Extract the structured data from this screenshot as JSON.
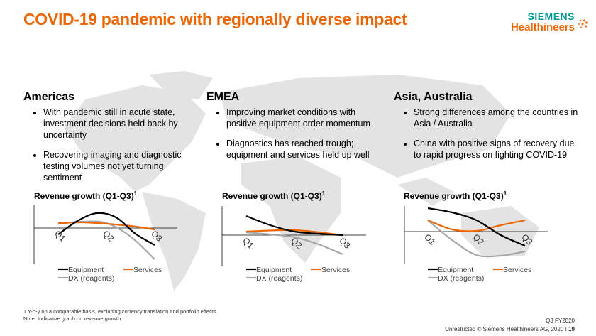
{
  "header": {
    "title": "COVID-19 pandemic with regionally diverse impact",
    "logo_line1": "SIEMENS",
    "logo_line2": "Healthineers"
  },
  "regions": [
    {
      "name": "Americas",
      "bullets": [
        "With pandemic still in acute state, investment decisions held back by uncertainty",
        "Recovering imaging and diagnostic testing volumes not yet turning sentiment"
      ]
    },
    {
      "name": "EMEA",
      "bullets": [
        "Improving market conditions with positive equipment order momentum",
        "Diagnostics has reached trough; equipment and services held up well"
      ]
    },
    {
      "name": "Asia, Australia",
      "bullets": [
        "Strong differences among the countries in Asia / Australia",
        "China with positive signs of recovery due to rapid progress on fighting COVID-19"
      ]
    }
  ],
  "chart_data": [
    {
      "type": "line",
      "title": "Revenue growth (Q1-Q3)",
      "title_sup": "1",
      "categories": [
        "Q1",
        "Q2",
        "Q3"
      ],
      "note": "indicative",
      "series": [
        {
          "name": "Equipment",
          "color": "#000000",
          "x": [
            1,
            1.4,
            1.8,
            2.2,
            2.6,
            3
          ],
          "y": [
            -0.9,
            1.0,
            2.1,
            1.5,
            -0.8,
            -2.4
          ]
        },
        {
          "name": "Services",
          "color": "#ec6602",
          "x": [
            1,
            1.5,
            2,
            2.5,
            3
          ],
          "y": [
            0.7,
            0.8,
            0.6,
            0.3,
            -0.2
          ]
        },
        {
          "name": "DX (reagents)",
          "color": "#a6a6a6",
          "x": [
            1,
            1.5,
            2,
            2.5,
            3
          ],
          "y": [
            0.6,
            0.9,
            0.7,
            -1.2,
            -4.4
          ]
        }
      ]
    },
    {
      "type": "line",
      "title": "Revenue growth (Q1-Q3)",
      "title_sup": "1",
      "categories": [
        "Q1",
        "Q2",
        "Q3"
      ],
      "note": "indicative",
      "series": [
        {
          "name": "Equipment",
          "color": "#000000",
          "x": [
            1,
            1.5,
            2,
            2.5,
            3
          ],
          "y": [
            2.7,
            1.4,
            0.5,
            0.2,
            0
          ]
        },
        {
          "name": "Services",
          "color": "#ec6602",
          "x": [
            1,
            2,
            3
          ],
          "y": [
            0.5,
            0.7,
            0
          ]
        },
        {
          "name": "DX (reagents)",
          "color": "#a6a6a6",
          "x": [
            1,
            1.5,
            2,
            2.5,
            3
          ],
          "y": [
            0.4,
            0.1,
            -0.3,
            -1.3,
            -2.7
          ]
        }
      ]
    },
    {
      "type": "line",
      "title": "Revenue growth (Q1-Q3)",
      "title_sup": "1",
      "categories": [
        "Q1",
        "Q2",
        "Q3"
      ],
      "note": "indicative",
      "series": [
        {
          "name": "Equipment",
          "color": "#000000",
          "x": [
            1,
            1.5,
            2,
            2.5,
            3
          ],
          "y": [
            3.3,
            2.7,
            1.6,
            -0.5,
            -2.0
          ]
        },
        {
          "name": "Services",
          "color": "#ec6602",
          "x": [
            1,
            1.5,
            2,
            2.5,
            3
          ],
          "y": [
            1.6,
            0.3,
            0.1,
            0.9,
            1.6
          ]
        },
        {
          "name": "DX (reagents)",
          "color": "#a6a6a6",
          "x": [
            1,
            1.5,
            2,
            2.5,
            3
          ],
          "y": [
            1.6,
            -1.2,
            -3.3,
            -3.4,
            -2.8
          ]
        }
      ]
    }
  ],
  "footer": {
    "footnote": "1 Y-o-y on a comparable basis, excluding currency translation and portfolio effects",
    "note": "Note: Indicative graph on revenue growth",
    "period": "Q3 FY2020",
    "copyright": "Unrestricted © Siemens Healthineers AG, 2020 I",
    "page": "19"
  },
  "colors": {
    "accent": "#ec6602",
    "brand_teal": "#009999",
    "map": "#d9d9d9"
  }
}
